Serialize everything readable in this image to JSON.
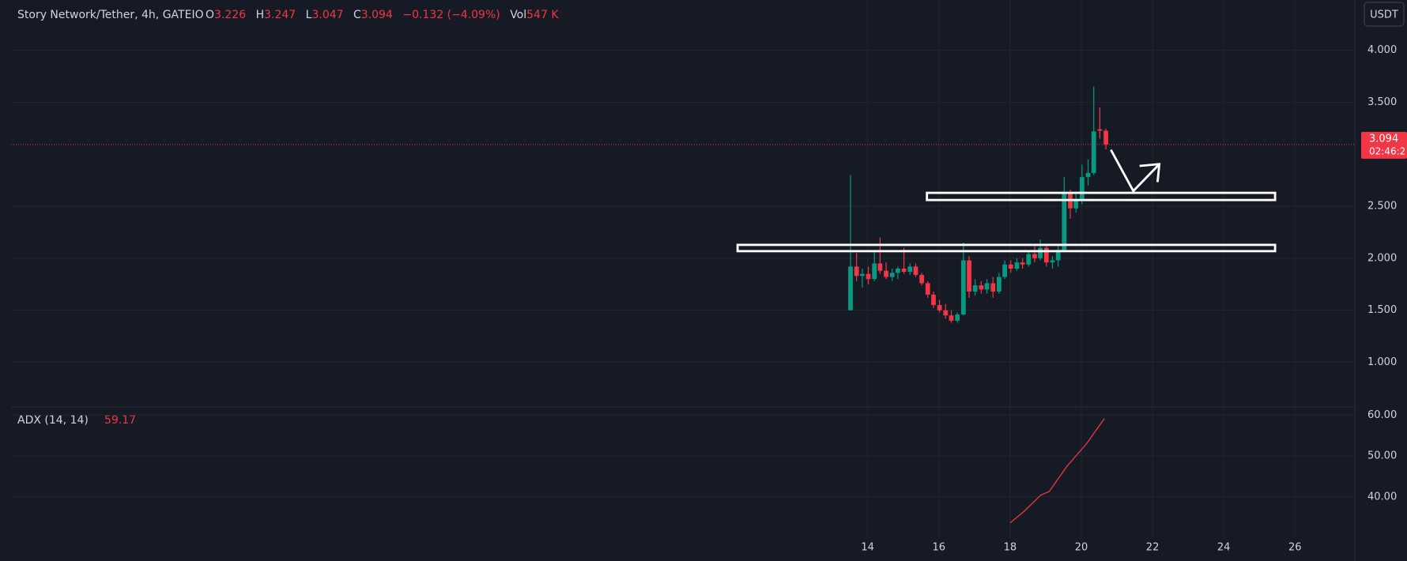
{
  "header": {
    "symbol": "Story Network/Tether, 4h, GATEIO",
    "o": "O",
    "open": 3.226,
    "h": "H",
    "high": 3.247,
    "l": "L",
    "low": 3.047,
    "c": "C",
    "close": 3.094,
    "change": "−0.132 (−4.09%)",
    "vol": "Vol",
    "volume": "547 K",
    "currency": "USDT",
    "countdown": "02:46:2"
  },
  "chart_data": [
    {
      "type": "candlestick",
      "up_color": "#089981",
      "down_color": "#f23645",
      "grid": true,
      "x": [
        13.52,
        13.69,
        13.85,
        14.02,
        14.19,
        14.35,
        14.52,
        14.69,
        14.85,
        15.02,
        15.19,
        15.35,
        15.52,
        15.69,
        15.85,
        16.02,
        16.19,
        16.35,
        16.52,
        16.69,
        16.85,
        17.02,
        17.19,
        17.35,
        17.52,
        17.69,
        17.85,
        18.02,
        18.19,
        18.35,
        18.52,
        18.69,
        18.85,
        19.02,
        19.19,
        19.35,
        19.52,
        19.69,
        19.85,
        20.02,
        20.19,
        20.35,
        20.52,
        20.69
      ],
      "open": [
        1.5,
        1.92,
        1.83,
        1.85,
        1.8,
        1.95,
        1.88,
        1.82,
        1.86,
        1.9,
        1.87,
        1.92,
        1.84,
        1.76,
        1.65,
        1.55,
        1.5,
        1.45,
        1.4,
        1.46,
        1.98,
        1.68,
        1.74,
        1.7,
        1.76,
        1.68,
        1.82,
        1.94,
        1.9,
        1.96,
        1.94,
        2.04,
        2.0,
        2.1,
        1.96,
        1.98,
        2.08,
        2.62,
        2.48,
        2.56,
        2.78,
        2.82,
        3.24,
        3.226
      ],
      "high": [
        2.8,
        2.05,
        1.9,
        1.92,
        2.08,
        2.2,
        1.96,
        1.9,
        1.92,
        2.1,
        1.95,
        1.95,
        1.86,
        1.78,
        1.68,
        1.6,
        1.56,
        1.5,
        1.48,
        2.15,
        2.02,
        1.8,
        1.78,
        1.8,
        1.82,
        1.86,
        1.98,
        1.98,
        2.0,
        2.0,
        2.06,
        2.14,
        2.18,
        2.12,
        2.02,
        2.12,
        2.78,
        2.66,
        2.62,
        2.9,
        2.95,
        3.65,
        3.45,
        3.247
      ],
      "low": [
        1.5,
        1.78,
        1.72,
        1.75,
        1.78,
        1.85,
        1.8,
        1.78,
        1.8,
        1.85,
        1.84,
        1.82,
        1.74,
        1.62,
        1.52,
        1.48,
        1.42,
        1.38,
        1.38,
        1.45,
        1.62,
        1.64,
        1.66,
        1.66,
        1.62,
        1.66,
        1.8,
        1.86,
        1.88,
        1.9,
        1.92,
        1.96,
        1.98,
        1.92,
        1.9,
        1.92,
        2.06,
        2.38,
        2.44,
        2.52,
        2.7,
        2.8,
        3.15,
        3.047
      ],
      "close": [
        1.92,
        1.83,
        1.85,
        1.8,
        1.95,
        1.88,
        1.82,
        1.86,
        1.9,
        1.87,
        1.92,
        1.84,
        1.76,
        1.65,
        1.55,
        1.5,
        1.45,
        1.4,
        1.46,
        1.98,
        1.68,
        1.74,
        1.7,
        1.76,
        1.68,
        1.82,
        1.94,
        1.9,
        1.96,
        1.94,
        2.04,
        2.0,
        2.1,
        1.96,
        1.98,
        2.08,
        2.62,
        2.48,
        2.56,
        2.78,
        2.82,
        3.22,
        3.226,
        3.094
      ],
      "xlim": [
        -10.05,
        27.68
      ],
      "xticks": [
        14,
        16,
        18,
        20,
        22,
        24,
        26
      ],
      "ylim": [
        0.586,
        4.483
      ],
      "yticks": [
        {
          "value": 1,
          "label": "1.000"
        },
        {
          "value": 1.5,
          "label": "1.500"
        },
        {
          "value": 2,
          "label": "2.000"
        },
        {
          "value": 2.5,
          "label": "2.500"
        },
        {
          "value": 3.5,
          "label": "3.500"
        },
        {
          "value": 4,
          "label": "4.000"
        }
      ]
    },
    {
      "type": "line",
      "title": "ADX (14, 14)",
      "last_value": 59.17,
      "color": "#f23645",
      "grid": true,
      "x": [
        18.0,
        18.4,
        18.86,
        19.1,
        19.6,
        20.15,
        20.65
      ],
      "values": [
        33.6,
        36.5,
        40.4,
        41.3,
        47.5,
        53.0,
        59.17
      ],
      "xlim": [
        -10.05,
        27.68
      ],
      "ylim": [
        29.9,
        61.8
      ],
      "yticks": [
        {
          "value": 40,
          "label": "40.00"
        },
        {
          "value": 50,
          "label": "50.00"
        },
        {
          "value": 60,
          "label": "60.00"
        }
      ]
    }
  ]
}
